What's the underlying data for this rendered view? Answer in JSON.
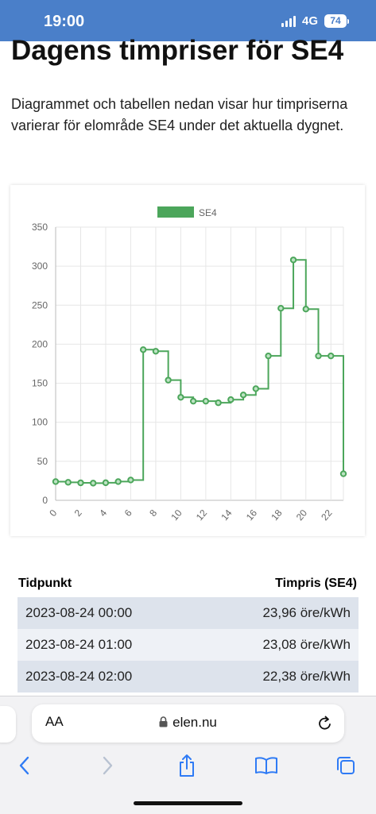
{
  "status": {
    "time": "19:00",
    "network": "4G",
    "battery": "74"
  },
  "page": {
    "title": "Dagens timpriser för SE4",
    "intro": "Diagrammet och tabellen nedan visar hur timpriserna varierar för elområde SE4 under det aktuella dygnet."
  },
  "chart_data": {
    "type": "line",
    "stepped": true,
    "legend": "SE4",
    "legend_position": "top",
    "series": [
      {
        "name": "SE4",
        "x": [
          0,
          1,
          2,
          3,
          4,
          5,
          6,
          7,
          8,
          9,
          10,
          11,
          12,
          13,
          14,
          15,
          16,
          17,
          18,
          19,
          20,
          21,
          22,
          23
        ],
        "values": [
          23.96,
          23.08,
          22.38,
          22,
          22.5,
          24,
          26,
          193,
          191,
          154,
          132,
          127,
          127,
          125,
          129,
          135,
          143,
          185,
          246,
          308,
          245,
          185,
          185,
          34
        ]
      }
    ],
    "color": "#4ca65b",
    "ylim": [
      0,
      350
    ],
    "yticks": [
      0,
      50,
      100,
      150,
      200,
      250,
      300,
      350
    ],
    "xlim": [
      0,
      23
    ],
    "xticks": [
      0,
      2,
      4,
      6,
      8,
      10,
      12,
      14,
      16,
      18,
      20,
      22
    ],
    "grid": true
  },
  "table": {
    "headers": [
      "Tidpunkt",
      "Timpris (SE4)"
    ],
    "rows": [
      [
        "2023-08-24 00:00",
        "23,96 öre/kWh"
      ],
      [
        "2023-08-24 01:00",
        "23,08 öre/kWh"
      ],
      [
        "2023-08-24 02:00",
        "22,38 öre/kWh"
      ]
    ]
  },
  "browser": {
    "aa_label": "AA",
    "url": "elen.nu",
    "icons": [
      "lock-icon",
      "reload-icon",
      "back-icon",
      "forward-icon",
      "share-icon",
      "bookmarks-icon",
      "tabs-icon"
    ]
  }
}
